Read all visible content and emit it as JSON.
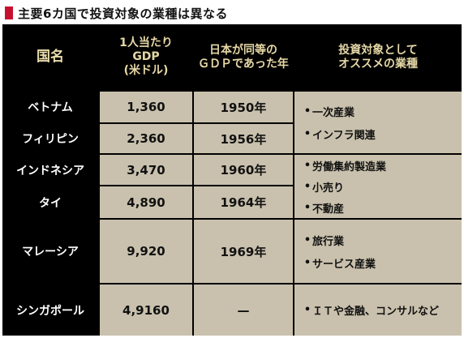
{
  "title": "主要6カ国で投資対象の業種は異なる",
  "colors": {
    "title_mark": "#c8102e",
    "header_text": "#e6d8a6",
    "cell_bg": "#c9c1ad",
    "grid": "#000000"
  },
  "header": {
    "country": "国名",
    "gdp": [
      "1人当たり",
      "GDP",
      "(米ドル)"
    ],
    "japan_year": [
      "日本が同等の",
      "ＧＤＰであった年"
    ],
    "recommend": [
      "投資対象として",
      "オススメの業種"
    ]
  },
  "rows": [
    {
      "country": "ベトナム",
      "gdp": "1,360",
      "year": "1950年"
    },
    {
      "country": "フィリピン",
      "gdp": "2,360",
      "year": "1956年"
    },
    {
      "country": "インドネシア",
      "gdp": "3,470",
      "year": "1960年"
    },
    {
      "country": "タイ",
      "gdp": "4,890",
      "year": "1964年"
    },
    {
      "country": "マレーシア",
      "gdp": "9,920",
      "year": "1969年"
    },
    {
      "country": "シンガポール",
      "gdp": "4,9160",
      "year": "—"
    }
  ],
  "recommendations": [
    [
      "一次産業",
      "インフラ関連"
    ],
    [
      "労働集約製造業",
      "小売り",
      "不動産"
    ],
    [
      "旅行業",
      "サービス産業"
    ],
    [
      "ＩＴや金融、コンサルなど"
    ]
  ]
}
